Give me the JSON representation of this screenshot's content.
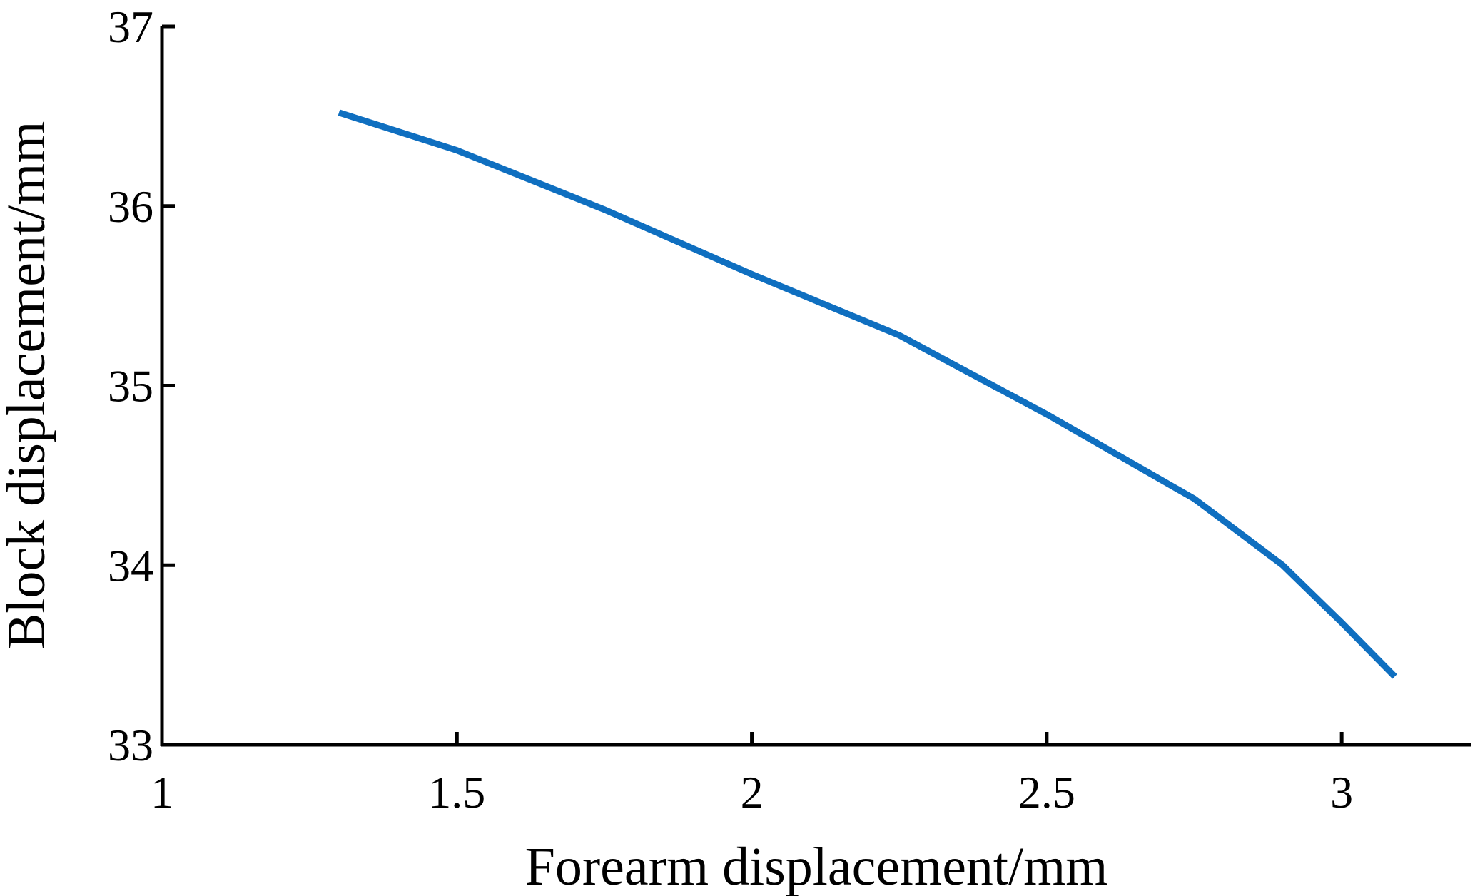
{
  "chart_data": {
    "type": "line",
    "xlabel": "Forearm displacement/mm",
    "ylabel": "Block displacement/mm",
    "x": [
      1.3,
      1.5,
      1.75,
      2.0,
      2.25,
      2.5,
      2.75,
      2.9,
      3.0,
      3.09
    ],
    "series": [
      {
        "color": "#0f6fc0",
        "values": [
          36.52,
          36.31,
          35.98,
          35.62,
          35.28,
          34.84,
          34.37,
          34.0,
          33.68,
          33.38
        ]
      }
    ],
    "xlim": [
      1,
      3.22
    ],
    "ylim": [
      33,
      37
    ],
    "xticks": [
      1,
      1.5,
      2,
      2.5,
      3
    ],
    "yticks": [
      33,
      34,
      35,
      36,
      37
    ],
    "grid": false
  }
}
